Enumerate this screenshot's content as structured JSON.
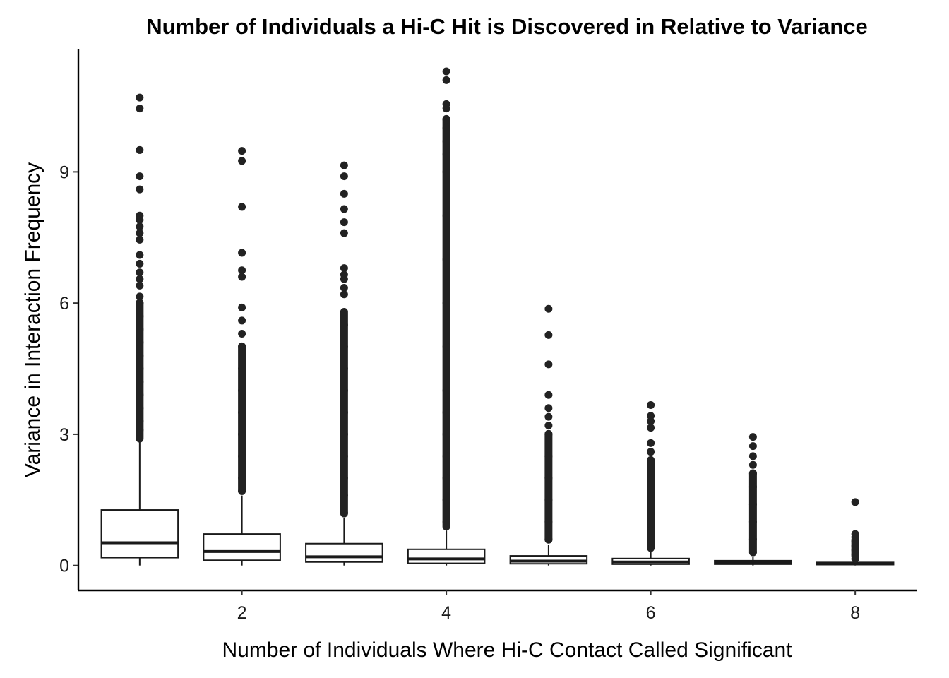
{
  "chart_data": {
    "type": "box",
    "title": "Number of Individuals a Hi-C Hit is Discovered in Relative to Variance",
    "xlabel": "Number of Individuals Where Hi-C Contact Called Significant",
    "ylabel": "Variance in Interaction Frequency",
    "xlim": [
      0.4,
      8.6
    ],
    "ylim": [
      -0.57,
      11.8
    ],
    "xticks": [
      2,
      4,
      6,
      8
    ],
    "yticks": [
      0,
      3,
      6,
      9
    ],
    "grid": false,
    "legend": "none",
    "box_color": "#1a1a1a",
    "outlier_color": "#222222",
    "groups": [
      {
        "x": 1,
        "min": 0.0,
        "q1": 0.18,
        "median": 0.52,
        "q3": 1.27,
        "whisker_high": 2.85,
        "outliers": [
          2.9,
          3.1,
          3.3,
          3.6,
          3.9,
          4.2,
          4.5,
          4.8,
          5.1,
          5.4,
          5.7,
          6.0,
          6.15,
          6.4,
          6.55,
          6.7,
          6.9,
          7.1,
          7.45,
          7.6,
          7.75,
          7.9,
          8.0,
          8.6,
          8.9,
          9.5,
          10.45,
          10.7
        ],
        "outlier_band": [
          2.85,
          6.1
        ]
      },
      {
        "x": 2,
        "min": 0.0,
        "q1": 0.12,
        "median": 0.32,
        "q3": 0.72,
        "whisker_high": 1.6,
        "outliers": [
          1.7,
          2.0,
          2.5,
          3.0,
          3.5,
          4.0,
          4.5,
          5.0,
          5.3,
          5.6,
          5.9,
          6.6,
          6.75,
          7.15,
          8.2,
          9.25,
          9.48
        ],
        "outlier_band": [
          1.62,
          5.1
        ]
      },
      {
        "x": 3,
        "min": 0.0,
        "q1": 0.08,
        "median": 0.2,
        "q3": 0.5,
        "whisker_high": 1.08,
        "outliers": [
          1.2,
          1.6,
          2.0,
          2.5,
          3.0,
          3.5,
          4.0,
          4.5,
          5.0,
          5.5,
          5.8,
          6.2,
          6.35,
          6.55,
          6.65,
          6.8,
          7.6,
          7.85,
          8.15,
          8.5,
          8.9,
          9.15
        ],
        "outlier_band": [
          1.1,
          5.85
        ]
      },
      {
        "x": 4,
        "min": 0.0,
        "q1": 0.05,
        "median": 0.15,
        "q3": 0.37,
        "whisker_high": 0.8,
        "outliers": [
          1.0,
          1.5,
          2.0,
          2.5,
          3.0,
          3.5,
          4.0,
          5.0,
          6.0,
          7.0,
          8.0,
          9.0,
          9.4,
          9.7,
          10.0,
          10.2,
          10.45,
          10.55,
          11.1,
          11.3
        ],
        "outlier_band": [
          0.8,
          10.3
        ]
      },
      {
        "x": 5,
        "min": 0.0,
        "q1": 0.04,
        "median": 0.1,
        "q3": 0.22,
        "whisker_high": 0.48,
        "outliers": [
          0.6,
          1.0,
          1.5,
          2.0,
          2.5,
          3.0,
          3.2,
          3.4,
          3.6,
          3.9,
          4.6,
          5.27,
          5.87
        ],
        "outlier_band": [
          0.5,
          3.1
        ]
      },
      {
        "x": 6,
        "min": 0.0,
        "q1": 0.03,
        "median": 0.08,
        "q3": 0.16,
        "whisker_high": 0.32,
        "outliers": [
          0.4,
          0.8,
          1.2,
          1.6,
          2.0,
          2.4,
          2.6,
          2.8,
          3.15,
          3.3,
          3.42,
          3.67
        ],
        "outlier_band": [
          0.35,
          2.5
        ]
      },
      {
        "x": 7,
        "min": 0.0,
        "q1": 0.03,
        "median": 0.06,
        "q3": 0.11,
        "whisker_high": 0.2,
        "outliers": [
          0.3,
          0.6,
          1.0,
          1.4,
          1.8,
          2.1,
          2.3,
          2.5,
          2.73,
          2.94
        ],
        "outlier_band": [
          0.22,
          2.2
        ]
      },
      {
        "x": 8,
        "min": 0.0,
        "q1": 0.02,
        "median": 0.04,
        "q3": 0.07,
        "whisker_high": 0.11,
        "outliers": [
          0.15,
          0.25,
          0.35,
          0.45,
          0.55,
          0.65,
          0.72,
          1.45
        ],
        "outlier_band": [
          0.12,
          0.68
        ]
      }
    ]
  }
}
